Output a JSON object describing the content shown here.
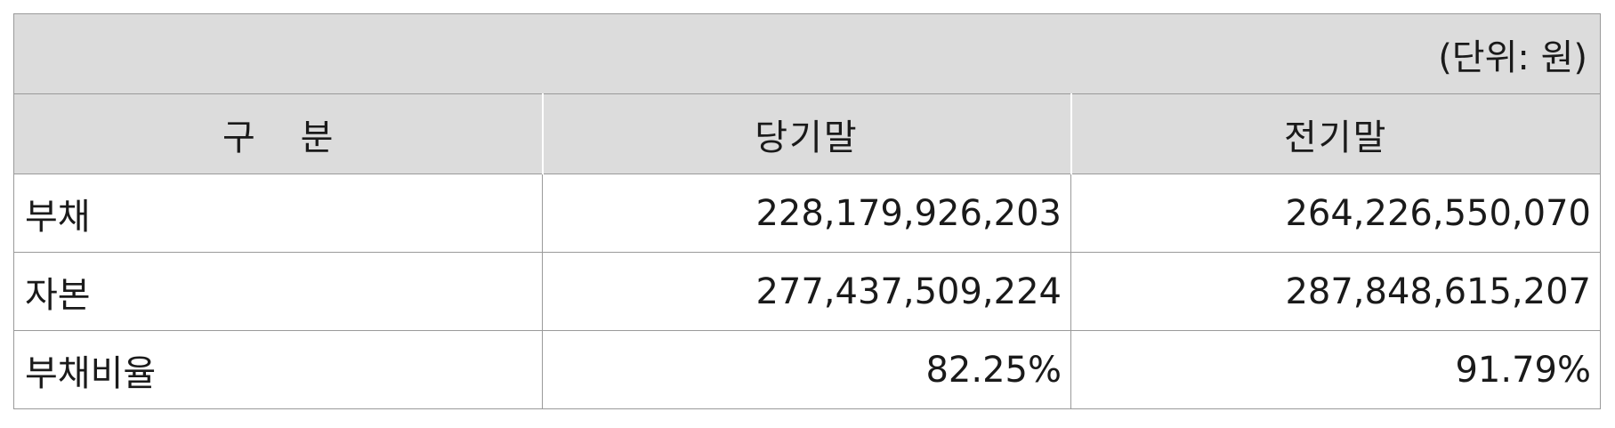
{
  "table": {
    "unit": "(단위: 원)",
    "headers": [
      "구    분",
      "당기말",
      "전기말"
    ],
    "rows": [
      {
        "label": "부채",
        "current": "228,179,926,203",
        "previous": "264,226,550,070"
      },
      {
        "label": "자본",
        "current": "277,437,509,224",
        "previous": "287,848,615,207"
      },
      {
        "label": "부채비율",
        "current": "82.25%",
        "previous": "91.79%"
      }
    ]
  },
  "colors": {
    "header_bg": "#dcdcdc",
    "border": "#9a9a9a",
    "text": "#1a1a1a"
  }
}
